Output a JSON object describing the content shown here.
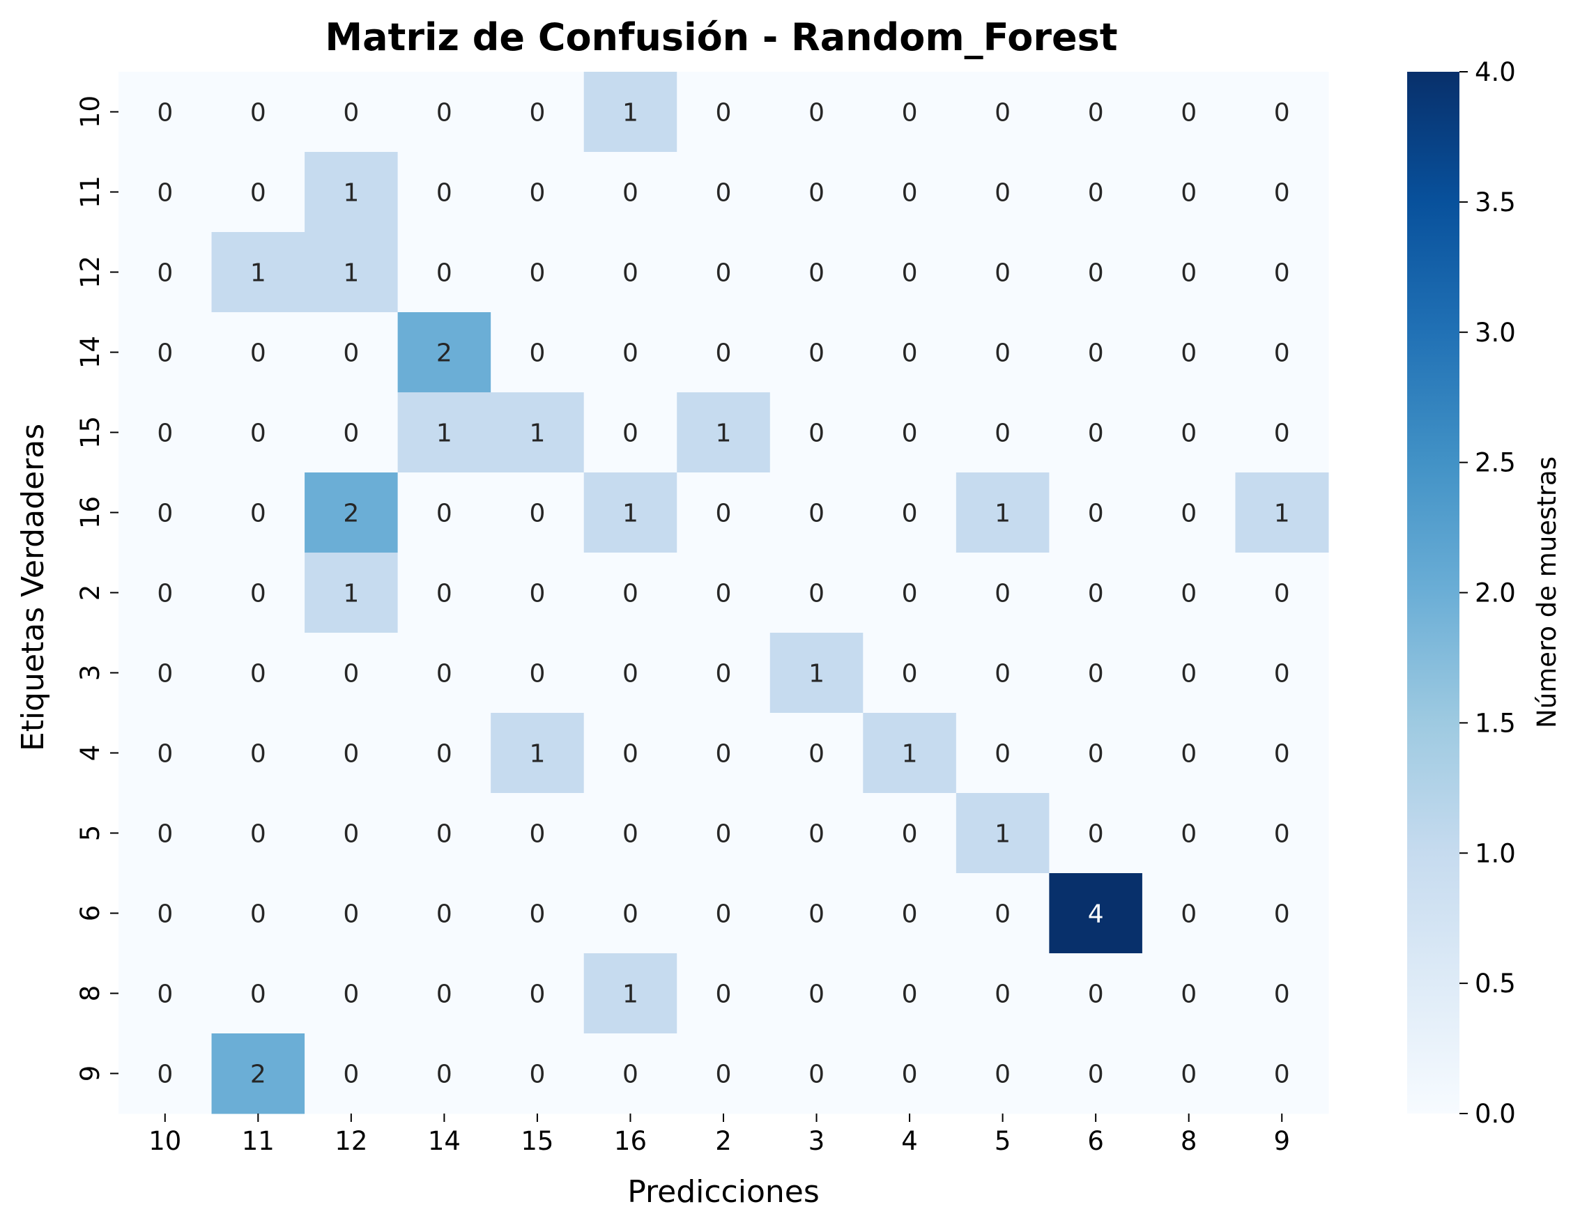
{
  "chart_data": {
    "type": "heatmap",
    "title": "Matriz de Confusión - Random_Forest",
    "xlabel": "Predicciones",
    "ylabel": "Etiquetas Verdaderas",
    "x_categories": [
      "10",
      "11",
      "12",
      "14",
      "15",
      "16",
      "2",
      "3",
      "4",
      "5",
      "6",
      "8",
      "9"
    ],
    "y_categories": [
      "10",
      "11",
      "12",
      "14",
      "15",
      "16",
      "2",
      "3",
      "4",
      "5",
      "6",
      "8",
      "9"
    ],
    "values": [
      [
        0,
        0,
        0,
        0,
        0,
        1,
        0,
        0,
        0,
        0,
        0,
        0,
        0
      ],
      [
        0,
        0,
        1,
        0,
        0,
        0,
        0,
        0,
        0,
        0,
        0,
        0,
        0
      ],
      [
        0,
        1,
        1,
        0,
        0,
        0,
        0,
        0,
        0,
        0,
        0,
        0,
        0
      ],
      [
        0,
        0,
        0,
        2,
        0,
        0,
        0,
        0,
        0,
        0,
        0,
        0,
        0
      ],
      [
        0,
        0,
        0,
        1,
        1,
        0,
        1,
        0,
        0,
        0,
        0,
        0,
        0
      ],
      [
        0,
        0,
        2,
        0,
        0,
        1,
        0,
        0,
        0,
        1,
        0,
        0,
        1
      ],
      [
        0,
        0,
        1,
        0,
        0,
        0,
        0,
        0,
        0,
        0,
        0,
        0,
        0
      ],
      [
        0,
        0,
        0,
        0,
        0,
        0,
        0,
        1,
        0,
        0,
        0,
        0,
        0
      ],
      [
        0,
        0,
        0,
        0,
        1,
        0,
        0,
        0,
        1,
        0,
        0,
        0,
        0
      ],
      [
        0,
        0,
        0,
        0,
        0,
        0,
        0,
        0,
        0,
        1,
        0,
        0,
        0
      ],
      [
        0,
        0,
        0,
        0,
        0,
        0,
        0,
        0,
        0,
        0,
        4,
        0,
        0
      ],
      [
        0,
        0,
        0,
        0,
        0,
        1,
        0,
        0,
        0,
        0,
        0,
        0,
        0
      ],
      [
        0,
        2,
        0,
        0,
        0,
        0,
        0,
        0,
        0,
        0,
        0,
        0,
        0
      ]
    ],
    "colorbar": {
      "label": "Número de muestras",
      "range": [
        0.0,
        4.0
      ],
      "ticks": [
        "0.0",
        "0.5",
        "1.0",
        "1.5",
        "2.0",
        "2.5",
        "3.0",
        "3.5",
        "4.0"
      ]
    },
    "colormap": "Blues",
    "color_stops": [
      "#f7fbff",
      "#deebf7",
      "#c6dbef",
      "#9ecae1",
      "#6baed6",
      "#4292c6",
      "#2171b5",
      "#08519c",
      "#08306b"
    ],
    "grid": false
  }
}
